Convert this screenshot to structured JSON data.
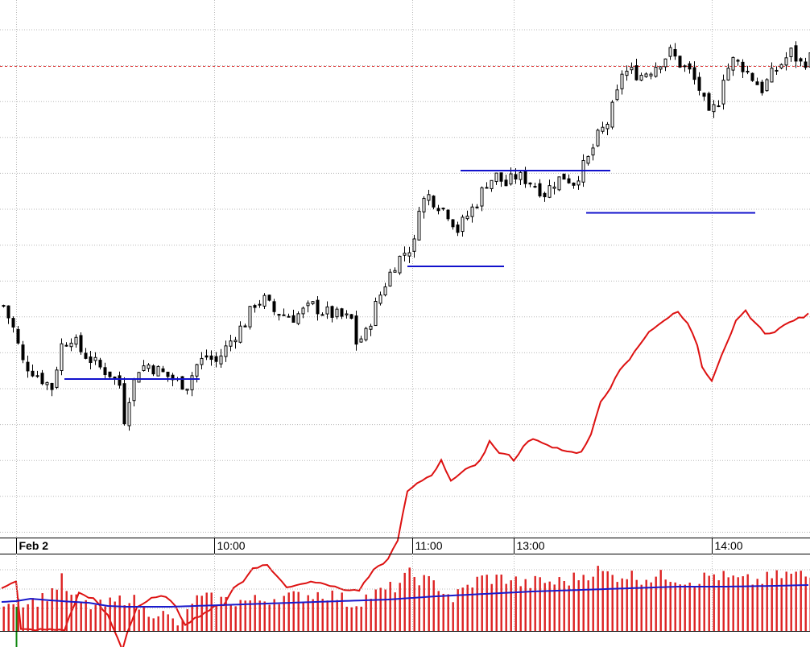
{
  "colors": {
    "background": "#ffffff",
    "grid": "#b8b8b8",
    "candle": "#000000",
    "indicator_line": "#dd1111",
    "support_resistance": "#1111cc",
    "reference_level": "#dd3333",
    "volume_bar": "#dd2222",
    "volume_avg": "#1a1acc",
    "volume_marker": "#118811"
  },
  "chart_data": [
    {
      "type": "candlestick",
      "title": "",
      "xlabel": "",
      "ylabel": "",
      "grid": true,
      "x_tick_labels": [
        {
          "label": "Feb 2",
          "bar": 3,
          "bold": true
        },
        {
          "label": "10:00",
          "bar": 44,
          "bold": false
        },
        {
          "label": "11:00",
          "bar": 85,
          "bold": false
        },
        {
          "label": "13:00",
          "bar": 106,
          "bold": false
        },
        {
          "label": "14:00",
          "bar": 147,
          "bold": false
        }
      ],
      "vertical_grid_bars": [
        3,
        44,
        85,
        106,
        147
      ],
      "price_axis_visible": false,
      "ylim": [
        0,
        100
      ],
      "candles_close_keypoints": [
        [
          0,
          50
        ],
        [
          2,
          42
        ],
        [
          4,
          30
        ],
        [
          6,
          27
        ],
        [
          8,
          24
        ],
        [
          10,
          21
        ],
        [
          12,
          36
        ],
        [
          14,
          39
        ],
        [
          16,
          34
        ],
        [
          18,
          31
        ],
        [
          20,
          28
        ],
        [
          22,
          26
        ],
        [
          24,
          22
        ],
        [
          25,
          10
        ],
        [
          26,
          18
        ],
        [
          28,
          28
        ],
        [
          30,
          29
        ],
        [
          32,
          27
        ],
        [
          34,
          25
        ],
        [
          36,
          23
        ],
        [
          38,
          22
        ],
        [
          40,
          29
        ],
        [
          42,
          32
        ],
        [
          44,
          30
        ],
        [
          46,
          35
        ],
        [
          48,
          40
        ],
        [
          50,
          44
        ],
        [
          52,
          51
        ],
        [
          54,
          52
        ],
        [
          56,
          48
        ],
        [
          58,
          47
        ],
        [
          60,
          46
        ],
        [
          62,
          48
        ],
        [
          64,
          50
        ],
        [
          66,
          48
        ],
        [
          68,
          47
        ],
        [
          70,
          46
        ],
        [
          72,
          45
        ],
        [
          73,
          37
        ],
        [
          75,
          40
        ],
        [
          77,
          50
        ],
        [
          79,
          58
        ],
        [
          81,
          65
        ],
        [
          83,
          69
        ],
        [
          85,
          72
        ],
        [
          86,
          86
        ],
        [
          88,
          89
        ],
        [
          90,
          86
        ],
        [
          92,
          83
        ],
        [
          94,
          77
        ],
        [
          96,
          82
        ],
        [
          98,
          87
        ],
        [
          100,
          94
        ],
        [
          102,
          96
        ],
        [
          104,
          93
        ],
        [
          106,
          96
        ],
        [
          108,
          95
        ],
        [
          110,
          93
        ],
        [
          112,
          90
        ],
        [
          114,
          94
        ],
        [
          116,
          96
        ],
        [
          118,
          94
        ],
        [
          121,
          102
        ],
        [
          123,
          110
        ],
        [
          125,
          115
        ],
        [
          127,
          125
        ],
        [
          128,
          133
        ],
        [
          130,
          133
        ],
        [
          132,
          132
        ],
        [
          134,
          134
        ],
        [
          136,
          137
        ],
        [
          138,
          140
        ],
        [
          140,
          136
        ],
        [
          142,
          133
        ],
        [
          144,
          127
        ],
        [
          146,
          117
        ],
        [
          148,
          123
        ],
        [
          149,
          132
        ],
        [
          151,
          137
        ],
        [
          153,
          135
        ],
        [
          155,
          131
        ],
        [
          157,
          127
        ],
        [
          159,
          132
        ],
        [
          161,
          136
        ],
        [
          163,
          140
        ],
        [
          165,
          136
        ],
        [
          167,
          138
        ]
      ],
      "horizontal_levels": [
        {
          "from_bar": 13,
          "to_bar": 41,
          "value": 24
        },
        {
          "from_bar": 84,
          "to_bar": 104,
          "value": 64
        },
        {
          "from_bar": 95,
          "to_bar": 126,
          "value": 98
        },
        {
          "from_bar": 121,
          "to_bar": 156,
          "value": 83
        }
      ],
      "reference_level": {
        "value": 135,
        "style": "dashed"
      },
      "overlay_line_keypoints": [
        [
          0,
          10
        ],
        [
          3,
          12
        ],
        [
          4,
          -5
        ],
        [
          13,
          -5
        ],
        [
          16,
          8
        ],
        [
          19,
          6
        ],
        [
          22,
          0
        ],
        [
          25,
          -12
        ],
        [
          26,
          -6
        ],
        [
          28,
          3
        ],
        [
          31,
          6
        ],
        [
          34,
          7
        ],
        [
          36,
          3
        ],
        [
          38,
          -3
        ],
        [
          40,
          -1
        ],
        [
          42,
          1
        ],
        [
          44,
          3
        ],
        [
          46,
          4
        ],
        [
          48,
          10
        ],
        [
          50,
          12
        ],
        [
          52,
          17
        ],
        [
          55,
          18
        ],
        [
          57,
          14
        ],
        [
          59,
          10
        ],
        [
          61,
          11
        ],
        [
          64,
          12
        ],
        [
          66,
          12
        ],
        [
          69,
          10
        ],
        [
          72,
          9
        ],
        [
          74,
          9
        ],
        [
          77,
          16
        ],
        [
          80,
          20
        ],
        [
          82,
          27
        ],
        [
          84,
          44
        ],
        [
          87,
          48
        ],
        [
          89,
          50
        ],
        [
          91,
          55
        ],
        [
          93,
          48
        ],
        [
          96,
          52
        ],
        [
          98,
          53
        ],
        [
          100,
          58
        ],
        [
          101,
          62
        ],
        [
          103,
          58
        ],
        [
          105,
          57
        ],
        [
          106,
          55
        ],
        [
          108,
          60
        ],
        [
          110,
          63
        ],
        [
          112,
          61
        ],
        [
          114,
          60
        ],
        [
          116,
          59
        ],
        [
          118,
          58
        ],
        [
          120,
          58
        ],
        [
          122,
          64
        ],
        [
          124,
          76
        ],
        [
          126,
          81
        ],
        [
          128,
          87
        ],
        [
          130,
          91
        ],
        [
          132,
          96
        ],
        [
          134,
          101
        ],
        [
          136,
          103
        ],
        [
          138,
          106
        ],
        [
          140,
          108
        ],
        [
          142,
          104
        ],
        [
          144,
          96
        ],
        [
          145,
          88
        ],
        [
          147,
          83
        ],
        [
          149,
          92
        ],
        [
          151,
          100
        ],
        [
          152,
          105
        ],
        [
          154,
          108
        ],
        [
          156,
          104
        ],
        [
          158,
          100
        ],
        [
          160,
          101
        ],
        [
          162,
          103
        ],
        [
          164,
          105
        ],
        [
          166,
          106
        ],
        [
          167,
          107
        ]
      ]
    },
    {
      "type": "bar",
      "title": "",
      "xlabel": "",
      "ylabel": "",
      "grid": true,
      "ylim": [
        0,
        100
      ],
      "volume_keypoints": [
        [
          0,
          38
        ],
        [
          3,
          40
        ],
        [
          5,
          36
        ],
        [
          8,
          40
        ],
        [
          10,
          50
        ],
        [
          12,
          63
        ],
        [
          14,
          41
        ],
        [
          17,
          32
        ],
        [
          20,
          30
        ],
        [
          23,
          35
        ],
        [
          26,
          43
        ],
        [
          29,
          25
        ],
        [
          32,
          24
        ],
        [
          35,
          12
        ],
        [
          37,
          7
        ],
        [
          39,
          38
        ],
        [
          42,
          40
        ],
        [
          45,
          38
        ],
        [
          48,
          37
        ],
        [
          51,
          37
        ],
        [
          54,
          39
        ],
        [
          57,
          42
        ],
        [
          60,
          42
        ],
        [
          63,
          45
        ],
        [
          66,
          47
        ],
        [
          69,
          43
        ],
        [
          72,
          33
        ],
        [
          75,
          42
        ],
        [
          78,
          48
        ],
        [
          81,
          55
        ],
        [
          84,
          70
        ],
        [
          87,
          63
        ],
        [
          90,
          56
        ],
        [
          93,
          40
        ],
        [
          96,
          55
        ],
        [
          99,
          66
        ],
        [
          102,
          65
        ],
        [
          105,
          65
        ],
        [
          108,
          57
        ],
        [
          111,
          62
        ],
        [
          114,
          60
        ],
        [
          117,
          63
        ],
        [
          120,
          70
        ],
        [
          123,
          75
        ],
        [
          126,
          68
        ],
        [
          129,
          70
        ],
        [
          132,
          66
        ],
        [
          135,
          67
        ],
        [
          138,
          68
        ],
        [
          141,
          63
        ],
        [
          144,
          64
        ],
        [
          147,
          70
        ],
        [
          150,
          65
        ],
        [
          153,
          62
        ],
        [
          156,
          62
        ],
        [
          159,
          66
        ],
        [
          162,
          70
        ],
        [
          165,
          70
        ],
        [
          167,
          66
        ]
      ],
      "moving_average_keypoints": [
        [
          0,
          36
        ],
        [
          3,
          37
        ],
        [
          6,
          40
        ],
        [
          10,
          38
        ],
        [
          15,
          36
        ],
        [
          18,
          35
        ],
        [
          22,
          31
        ],
        [
          26,
          30
        ],
        [
          30,
          30
        ],
        [
          35,
          30
        ],
        [
          40,
          31
        ],
        [
          45,
          32
        ],
        [
          50,
          33
        ],
        [
          55,
          34
        ],
        [
          60,
          35
        ],
        [
          65,
          36
        ],
        [
          70,
          37
        ],
        [
          80,
          39
        ],
        [
          90,
          43
        ],
        [
          100,
          46
        ],
        [
          110,
          49
        ],
        [
          120,
          51
        ],
        [
          130,
          53
        ],
        [
          140,
          55
        ],
        [
          150,
          55
        ],
        [
          160,
          56
        ],
        [
          167,
          57
        ]
      ],
      "marker": {
        "bar": 3,
        "color_key": "volume_marker"
      }
    }
  ]
}
